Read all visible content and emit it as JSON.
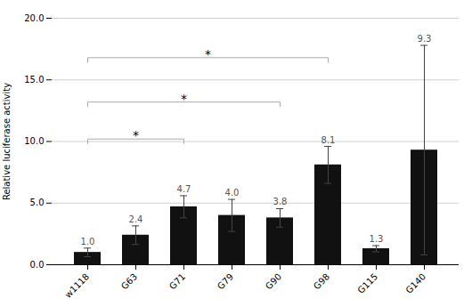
{
  "chart_data": {
    "type": "bar",
    "categories": [
      "w1118",
      "G63",
      "G71",
      "G79",
      "G90",
      "G98",
      "G115",
      "G140"
    ],
    "values": [
      1.0,
      2.4,
      4.7,
      4.0,
      3.8,
      8.1,
      1.3,
      9.3
    ],
    "errors": [
      0.35,
      0.75,
      0.9,
      1.3,
      0.75,
      1.5,
      0.25,
      8.5
    ],
    "data_labels": true,
    "value_labels": [
      "1.0",
      "2.4",
      "4.7",
      "4.0",
      "3.8",
      "8.1",
      "1.3",
      "9.3"
    ],
    "color": "#111111",
    "ylabel": "Relative luciferase activity",
    "ylim": [
      0.0,
      20.0
    ],
    "yticks": [
      {
        "value": 0,
        "label": "0.0"
      },
      {
        "value": 5,
        "label": "5.0"
      },
      {
        "value": 10,
        "label": "10.0"
      },
      {
        "value": 15,
        "label": "15.0"
      },
      {
        "value": 20,
        "label": "20.0"
      }
    ],
    "grid": true,
    "annotations": [
      {
        "from": "w1118",
        "to": "G71",
        "y": 10.2,
        "text": "*"
      },
      {
        "from": "w1118",
        "to": "G90",
        "y": 13.2,
        "text": "*"
      },
      {
        "from": "w1118",
        "to": "G98",
        "y": 16.8,
        "text": "*"
      }
    ]
  }
}
